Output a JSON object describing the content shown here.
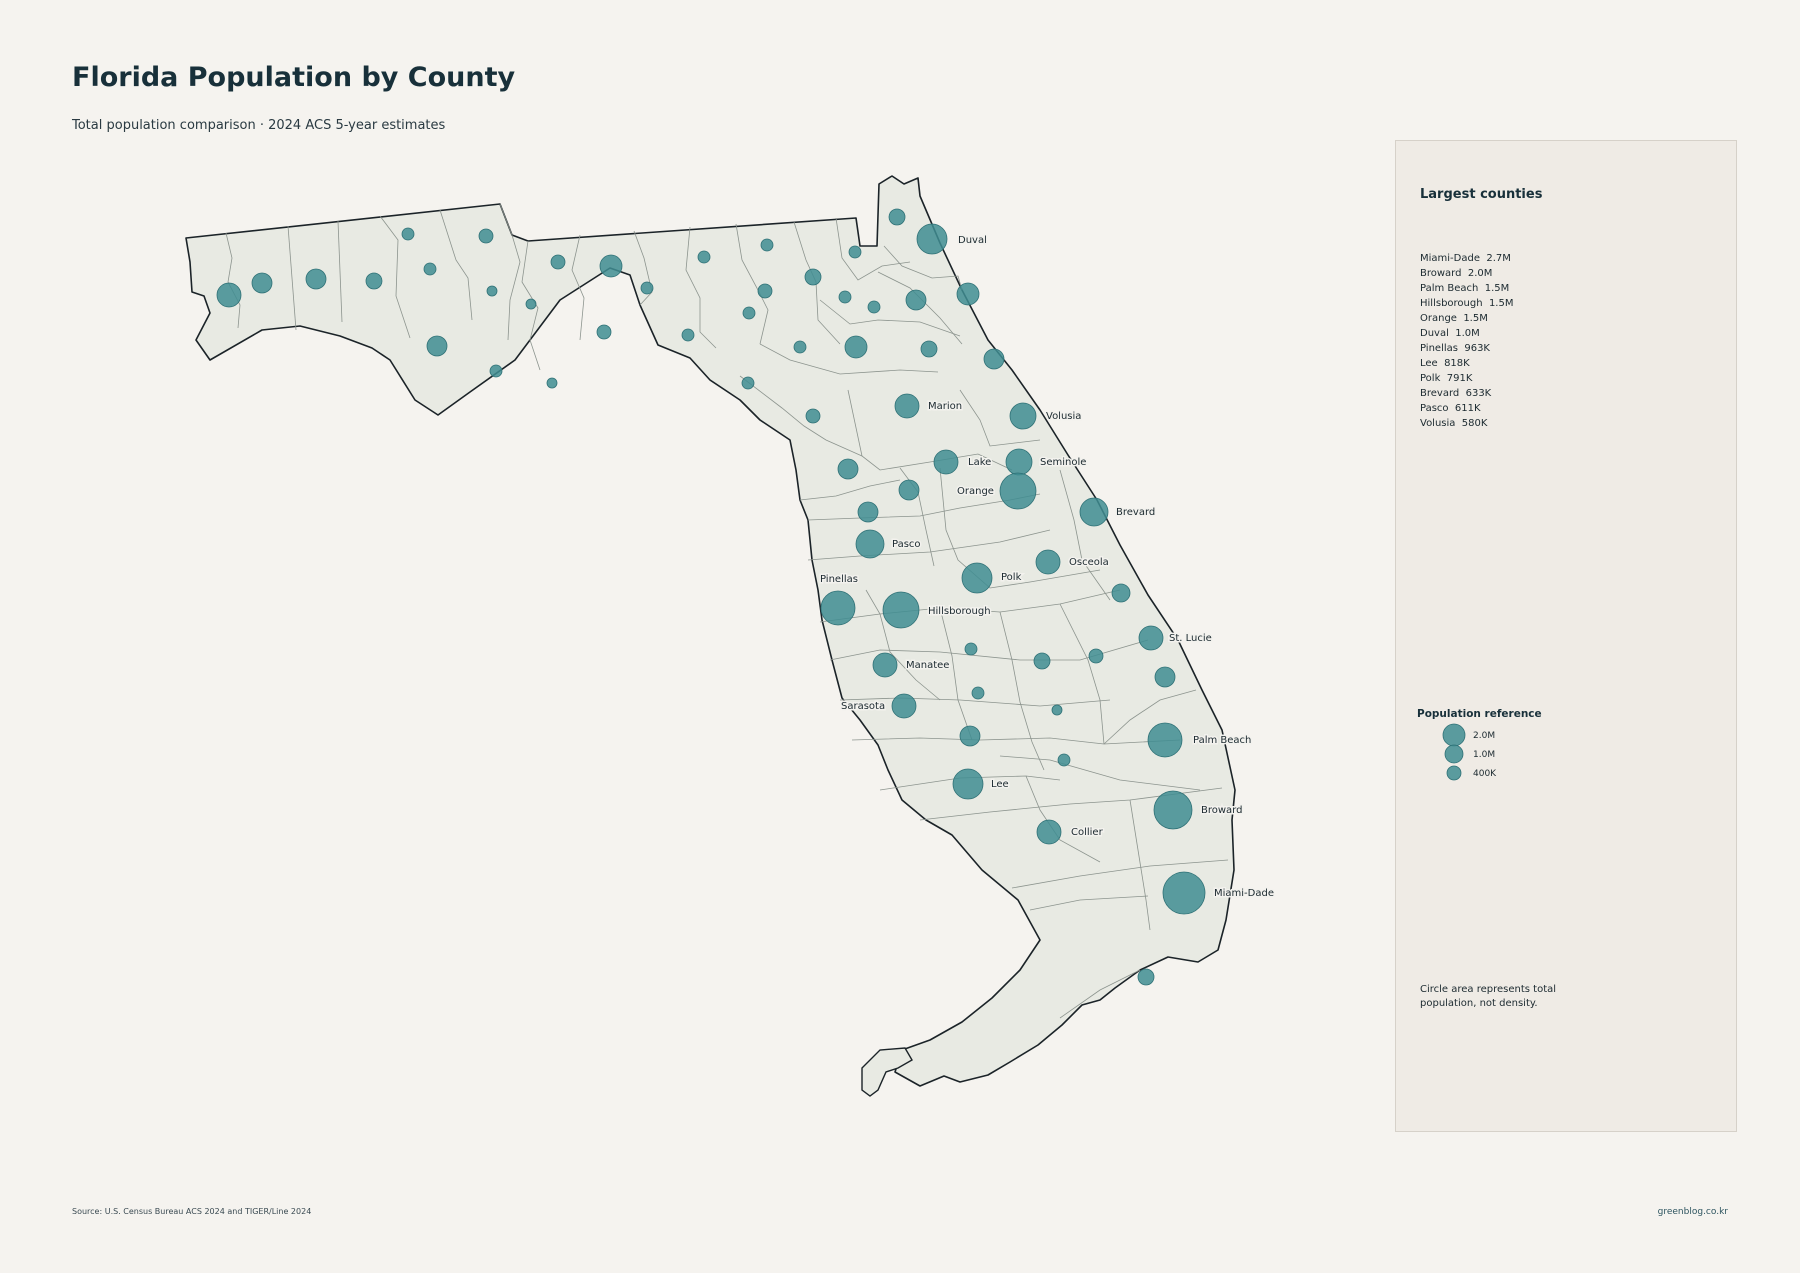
{
  "title": "Florida Population by County",
  "subtitle": "Total population comparison · 2024 ACS 5-year estimates",
  "panel": {
    "heading": "Largest counties",
    "ranking": [
      {
        "name": "Miami-Dade",
        "value": "2.7M"
      },
      {
        "name": "Broward",
        "value": "2.0M"
      },
      {
        "name": "Palm Beach",
        "value": "1.5M"
      },
      {
        "name": "Hillsborough",
        "value": "1.5M"
      },
      {
        "name": "Orange",
        "value": "1.5M"
      },
      {
        "name": "Duval",
        "value": "1.0M"
      },
      {
        "name": "Pinellas",
        "value": "963K"
      },
      {
        "name": "Lee",
        "value": "818K"
      },
      {
        "name": "Polk",
        "value": "791K"
      },
      {
        "name": "Brevard",
        "value": "633K"
      },
      {
        "name": "Pasco",
        "value": "611K"
      },
      {
        "name": "Volusia",
        "value": "580K"
      }
    ],
    "legend_title": "Population reference",
    "legend": [
      {
        "label": "2.0M",
        "population": 2000000
      },
      {
        "label": "1.0M",
        "population": 1000000
      },
      {
        "label": "400K",
        "population": 400000
      }
    ],
    "note": "Circle area represents total population, not density."
  },
  "source": "Source: U.S. Census Bureau ACS 2024 and TIGER/Line 2024",
  "credit": "greenblog.co.kr",
  "colors": {
    "bubble": "#3f8d92",
    "land": "#e8eae3",
    "border": "#1b2328",
    "county_border": "#8c948e",
    "background": "#f5f3ef"
  },
  "chart_data": {
    "type": "map",
    "region": "Florida",
    "encoding": "proportional symbol (circle area = total population)",
    "labeled_counties": [
      {
        "name": "Duval",
        "population": 1000000
      },
      {
        "name": "Marion"
      },
      {
        "name": "Volusia",
        "population": 580000
      },
      {
        "name": "Lake"
      },
      {
        "name": "Seminole"
      },
      {
        "name": "Orange",
        "population": 1500000
      },
      {
        "name": "Brevard",
        "population": 633000
      },
      {
        "name": "Pasco",
        "population": 611000
      },
      {
        "name": "Osceola"
      },
      {
        "name": "Pinellas",
        "population": 963000
      },
      {
        "name": "Polk",
        "population": 791000
      },
      {
        "name": "Hillsborough",
        "population": 1500000
      },
      {
        "name": "St. Lucie"
      },
      {
        "name": "Manatee"
      },
      {
        "name": "Sarasota"
      },
      {
        "name": "Palm Beach",
        "population": 1500000
      },
      {
        "name": "Lee",
        "population": 818000
      },
      {
        "name": "Broward",
        "population": 2000000
      },
      {
        "name": "Collier"
      },
      {
        "name": "Miami-Dade",
        "population": 2700000
      }
    ]
  }
}
